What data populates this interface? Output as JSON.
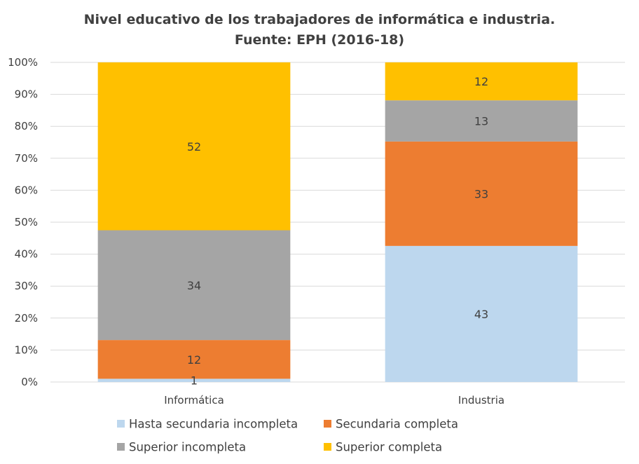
{
  "chart_data": {
    "type": "bar",
    "stacked": true,
    "normalized": true,
    "title": [
      "Nivel educativo de los trabajadores de informática e industria.",
      "Fuente: EPH (2016-18)"
    ],
    "categories": [
      "Informática",
      "Industria"
    ],
    "series": [
      {
        "name": "Hasta secundaria incompleta",
        "values": [
          1,
          43
        ],
        "color": "#BDD7EE"
      },
      {
        "name": "Secundaria completa",
        "values": [
          12,
          33
        ],
        "color": "#ED7D31"
      },
      {
        "name": "Superior incompleta",
        "values": [
          34,
          13
        ],
        "color": "#A5A5A5"
      },
      {
        "name": "Superior completa",
        "values": [
          52,
          12
        ],
        "color": "#FFC000"
      }
    ],
    "data_labels": [
      [
        "1",
        "43"
      ],
      [
        "12",
        "33"
      ],
      [
        "34",
        "13"
      ],
      [
        "52",
        "12"
      ]
    ],
    "y_ticks": [
      "0%",
      "10%",
      "20%",
      "30%",
      "40%",
      "50%",
      "60%",
      "70%",
      "80%",
      "90%",
      "100%"
    ],
    "ylim": [
      0,
      100
    ],
    "grid": true,
    "legend_position": "bottom",
    "gridline_color": "#D9D9D9",
    "text_color": "#404040"
  }
}
